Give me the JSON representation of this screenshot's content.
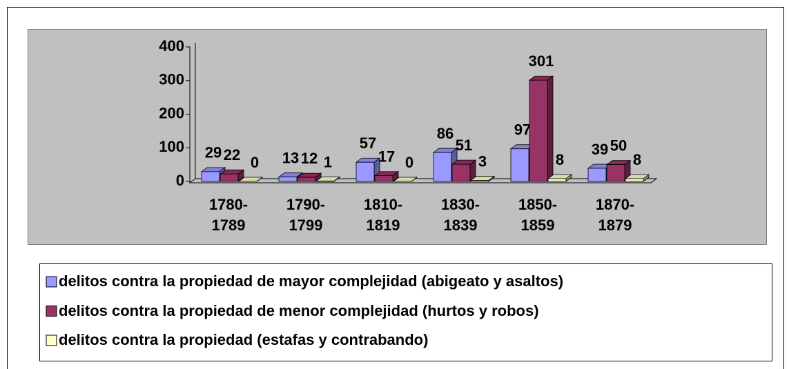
{
  "chart_data": {
    "type": "bar",
    "categories": [
      "1780-1789",
      "1790-1799",
      "1810-1819",
      "1830-1839",
      "1850-1859",
      "1870-1879"
    ],
    "series": [
      {
        "name": "delitos contra la propiedad de mayor complejidad (abigeato y asaltos)",
        "color": "#9999ff",
        "values": [
          29,
          13,
          57,
          86,
          97,
          39
        ]
      },
      {
        "name": "delitos contra la propiedad de menor complejidad (hurtos y robos)",
        "color": "#993366",
        "values": [
          22,
          12,
          17,
          51,
          301,
          50
        ]
      },
      {
        "name": "delitos contra la propiedad (estafas y contrabando)",
        "color": "#ffffcc",
        "values": [
          0,
          1,
          0,
          3,
          8,
          8
        ]
      }
    ],
    "ylim": [
      0,
      400
    ],
    "yticks": [
      0,
      100,
      200,
      300,
      400
    ],
    "legend": "bottom"
  }
}
